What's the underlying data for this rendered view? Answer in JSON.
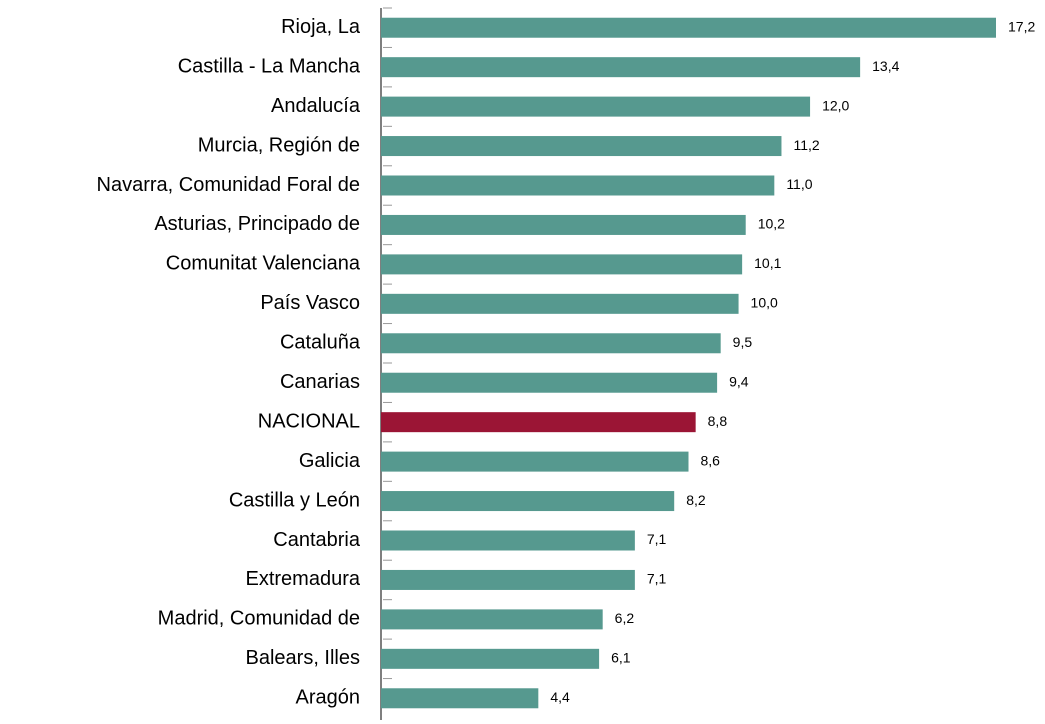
{
  "chart_data": {
    "type": "bar",
    "orientation": "horizontal",
    "categories": [
      "Rioja, La",
      "Castilla - La Mancha",
      "Andalucía",
      "Murcia, Región de",
      "Navarra, Comunidad Foral de",
      "Asturias, Principado de",
      "Comunitat Valenciana",
      "País Vasco",
      "Cataluña",
      "Canarias",
      "NACIONAL",
      "Galicia",
      "Castilla y León",
      "Cantabria",
      "Extremadura",
      "Madrid, Comunidad de",
      "Balears, Illes",
      "Aragón"
    ],
    "values": [
      17.2,
      13.4,
      12.0,
      11.2,
      11.0,
      10.2,
      10.1,
      10.0,
      9.5,
      9.4,
      8.8,
      8.6,
      8.2,
      7.1,
      7.1,
      6.2,
      6.1,
      4.4
    ],
    "value_labels": [
      "17,2",
      "13,4",
      "12,0",
      "11,2",
      "11,0",
      "10,2",
      "10,1",
      "10,0",
      "9,5",
      "9,4",
      "8,8",
      "8,6",
      "8,2",
      "7,1",
      "7,1",
      "6,2",
      "6,1",
      "4,4"
    ],
    "colors": [
      "#56998f",
      "#56998f",
      "#56998f",
      "#56998f",
      "#56998f",
      "#56998f",
      "#56998f",
      "#56998f",
      "#56998f",
      "#56998f",
      "#9b1535",
      "#56998f",
      "#56998f",
      "#56998f",
      "#56998f",
      "#56998f",
      "#56998f",
      "#56998f"
    ]
  }
}
